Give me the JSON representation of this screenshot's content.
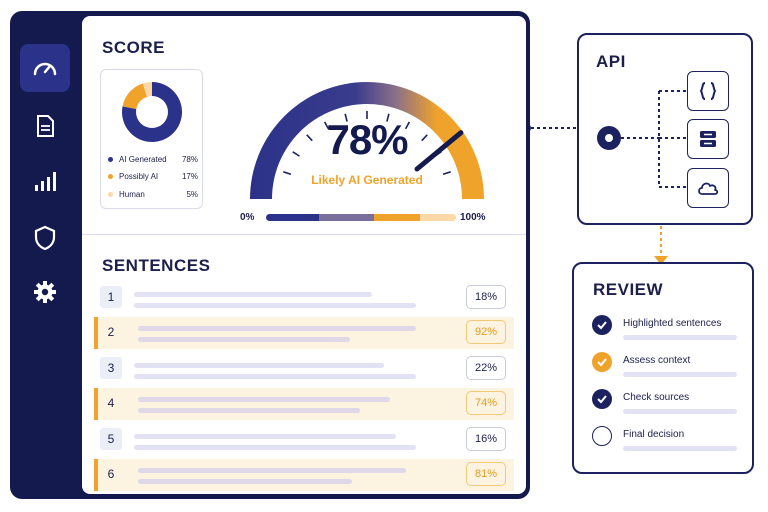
{
  "sidebar": {
    "items": [
      {
        "icon": "speedometer-icon",
        "active": true
      },
      {
        "icon": "document-icon",
        "active": false
      },
      {
        "icon": "bar-chart-icon",
        "active": false
      },
      {
        "icon": "shield-icon",
        "active": false
      },
      {
        "icon": "gear-icon",
        "active": false
      }
    ]
  },
  "score": {
    "title": "SCORE",
    "value": "78%",
    "caption": "Likely AI Generated",
    "scale_min": "0%",
    "scale_max": "100%",
    "gauge_fraction": 0.78
  },
  "breakdown": [
    {
      "label": "AI Generated",
      "value": "78%",
      "color": "#2b3289"
    },
    {
      "label": "Possibly AI",
      "value": "17%",
      "color": "#f0a32a"
    },
    {
      "label": "Human",
      "value": "5%",
      "color": "#fbd8a6"
    }
  ],
  "colors": {
    "navy": "#1c2260",
    "accent": "#f0a32a",
    "soft": "#fbd8a6",
    "purple": "#7a6e9a"
  },
  "sentences": {
    "title": "SENTENCES",
    "rows": [
      {
        "num": "1",
        "score": "18%",
        "highlight": false
      },
      {
        "num": "2",
        "score": "92%",
        "highlight": true
      },
      {
        "num": "3",
        "score": "22%",
        "highlight": false
      },
      {
        "num": "4",
        "score": "74%",
        "highlight": true
      },
      {
        "num": "5",
        "score": "16%",
        "highlight": false
      },
      {
        "num": "6",
        "score": "81%",
        "highlight": true
      }
    ]
  },
  "api": {
    "title": "API",
    "outputs": [
      "code-braces-icon",
      "server-icon",
      "cloud-icon"
    ]
  },
  "review": {
    "title": "REVIEW",
    "items": [
      {
        "label": "Highlighted sentences",
        "status": "done"
      },
      {
        "label": "Assess context",
        "status": "warn"
      },
      {
        "label": "Check sources",
        "status": "done"
      },
      {
        "label": "Final decision",
        "status": "todo"
      }
    ]
  }
}
